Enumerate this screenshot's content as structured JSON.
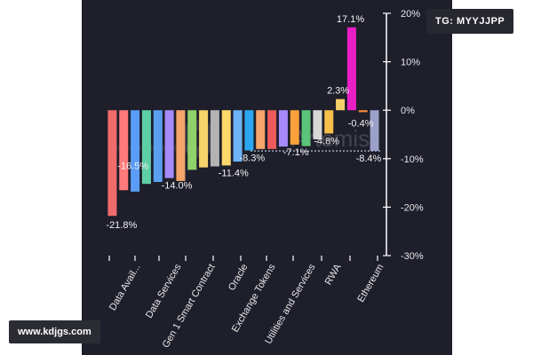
{
  "chart_data": {
    "type": "bar",
    "yaxis_side": "right",
    "ylim": [
      -30,
      20
    ],
    "yticks": [
      20,
      10,
      0,
      -10,
      -20,
      -30
    ],
    "ytick_labels": [
      "20%",
      "10%",
      "0%",
      "-10%",
      "-20%",
      "-30%"
    ],
    "reference_line": -8.4,
    "category_labels": [
      "Data Avail...",
      "Data Services",
      "Gen 1 Smart Contract",
      "Oracle",
      "Exchange Tokens",
      "Utilities and Services",
      "RWA",
      "Ethereum"
    ],
    "bars": [
      {
        "value": -21.8,
        "color": "#f06c6c",
        "label": "-21.8%"
      },
      {
        "value": -16.5,
        "color": "#ff7b7b",
        "label": "-16.5%"
      },
      {
        "value": -16.8,
        "color": "#5b9df6",
        "label": ""
      },
      {
        "value": -15.2,
        "color": "#5fd0a6",
        "label": ""
      },
      {
        "value": -14.8,
        "color": "#5aa0f0",
        "label": ""
      },
      {
        "value": -14.0,
        "color": "#a78bfa",
        "label": "-14.0%"
      },
      {
        "value": -14.6,
        "color": "#f5a46a",
        "label": ""
      },
      {
        "value": -12.3,
        "color": "#8fd16a",
        "label": ""
      },
      {
        "value": -11.8,
        "color": "#f7d36b",
        "label": ""
      },
      {
        "value": -11.6,
        "color": "#b3b3b3",
        "label": ""
      },
      {
        "value": -11.4,
        "color": "#ffd86b",
        "label": "-11.4%"
      },
      {
        "value": -10.6,
        "color": "#6db3f7",
        "label": ""
      },
      {
        "value": -8.3,
        "color": "#2aa7f0",
        "label": "-8.3%"
      },
      {
        "value": -8.0,
        "color": "#f5a46a",
        "label": ""
      },
      {
        "value": -8.0,
        "color": "#ee5b5b",
        "label": ""
      },
      {
        "value": -7.5,
        "color": "#a78bfa",
        "label": ""
      },
      {
        "value": -7.1,
        "color": "#f9a23b",
        "label": "-7.1%"
      },
      {
        "value": -7.4,
        "color": "#5bc47a",
        "label": ""
      },
      {
        "value": -6.0,
        "color": "#d7d7d7",
        "label": ""
      },
      {
        "value": -4.8,
        "color": "#f5c04a",
        "label": "-4.8%"
      },
      {
        "value": 2.3,
        "color": "#f5d06a",
        "label": "2.3%"
      },
      {
        "value": 17.1,
        "color": "#e91ec5",
        "label": "17.1%"
      },
      {
        "value": -0.4,
        "color": "#f5893a",
        "label": "-0.4%"
      },
      {
        "value": -8.4,
        "color": "#9aa0c8",
        "label": "-8.4%"
      }
    ]
  },
  "watermark": {
    "brand": "Artemis",
    "subtext": "...ssets Unlocked... Bl..."
  },
  "badges": {
    "telegram": "TG: MYYJJPP",
    "site": "www.kdjgs.com"
  },
  "colors": {
    "panel_bg": "#1e1f2b",
    "axis": "#ffffff",
    "label": "#e6e6e6"
  }
}
